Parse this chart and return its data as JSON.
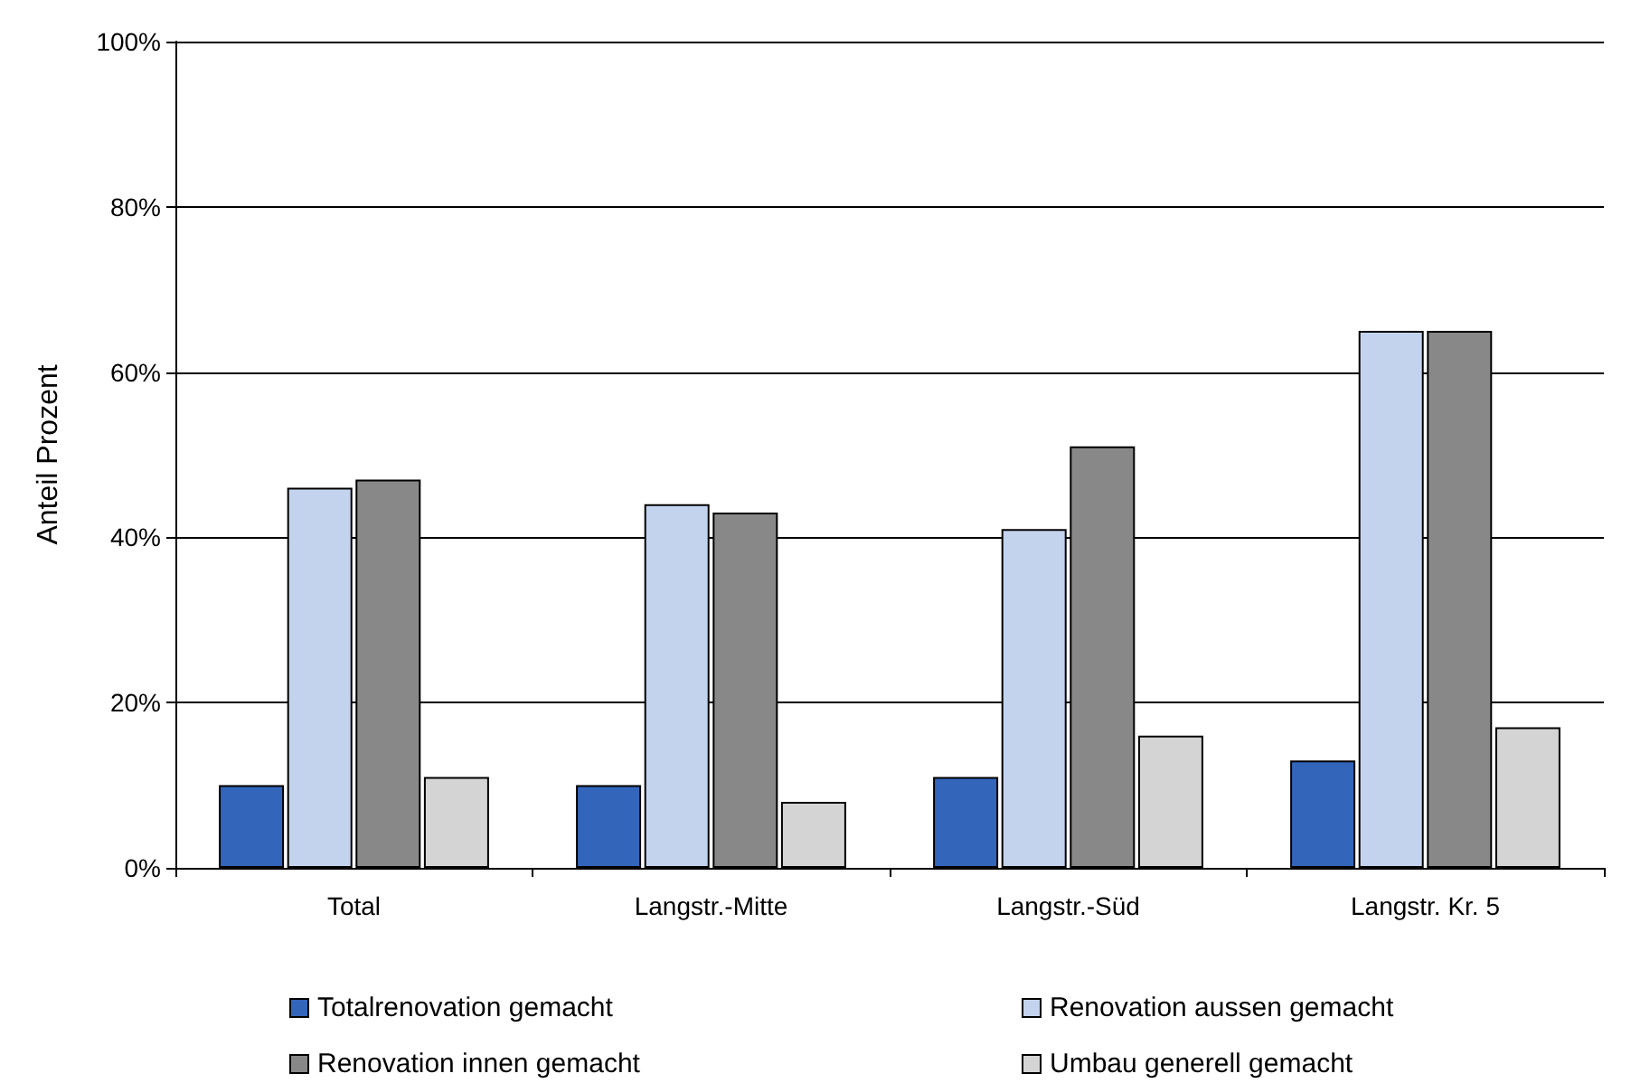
{
  "chart_data": {
    "type": "bar",
    "ylabel": "Anteil Prozent",
    "categories": [
      "Total",
      "Langstr.-Mitte",
      "Langstr.-Süd",
      "Langstr. Kr. 5"
    ],
    "series": [
      {
        "name": "Totalrenovation gemacht",
        "color": "#3366bb",
        "values": [
          10,
          10,
          11,
          13
        ]
      },
      {
        "name": "Renovation aussen gemacht",
        "color": "#c3d3ee",
        "values": [
          46,
          44,
          41,
          65
        ]
      },
      {
        "name": "Renovation innen gemacht",
        "color": "#888888",
        "values": [
          47,
          43,
          51,
          65
        ]
      },
      {
        "name": "Umbau generell gemacht",
        "color": "#d4d4d4",
        "values": [
          11,
          8,
          16,
          17
        ]
      }
    ],
    "ylim": [
      0,
      100
    ],
    "yticks": [
      {
        "value": 0,
        "label": "0%"
      },
      {
        "value": 20,
        "label": "20%"
      },
      {
        "value": 40,
        "label": "40%"
      },
      {
        "value": 60,
        "label": "60%"
      },
      {
        "value": 80,
        "label": "80%"
      },
      {
        "value": 100,
        "label": "100%"
      }
    ],
    "grid": "y",
    "legend": "bottom"
  }
}
